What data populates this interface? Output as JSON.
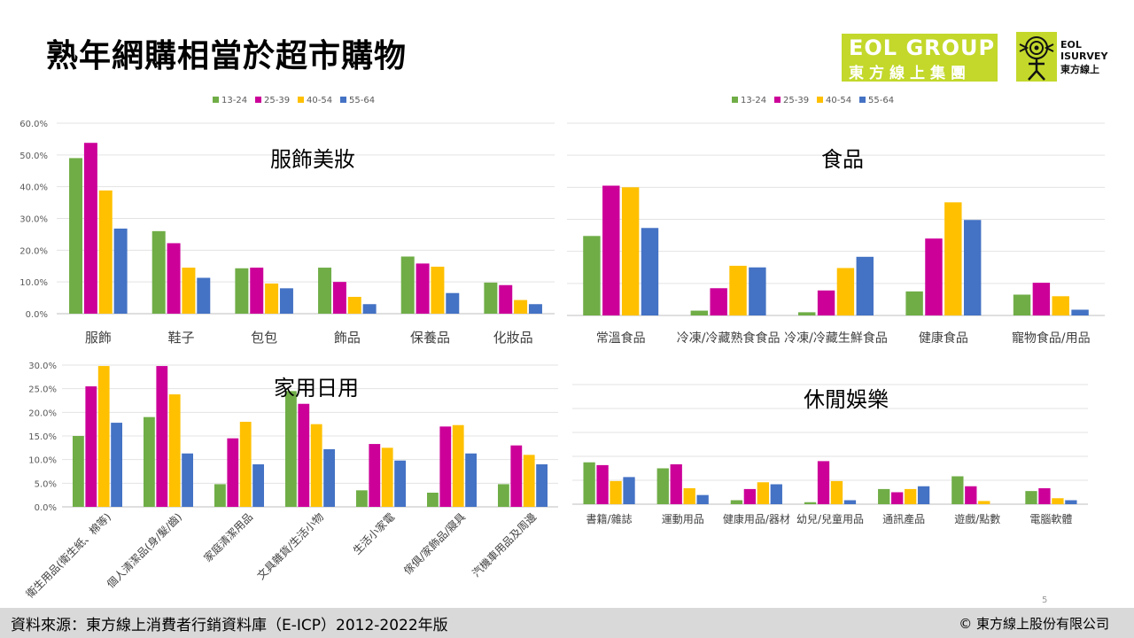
{
  "page": {
    "title": "熟年網購相當於超市購物",
    "logo_eol_line1": "EOL GROUP",
    "logo_eol_line2": "東方線上集團",
    "logo_survey_line1": "EOL",
    "logo_survey_line2": "ISURVEY",
    "logo_survey_line3": "東方線上",
    "footer_source": "資料來源：東方線上消費者行銷資料庫（E-ICP）2012-2022年版",
    "footer_copyright": "© 東方線上股份有限公司",
    "page_number": "5"
  },
  "colors": {
    "13-24": "#70ad47",
    "25-39": "#cc0099",
    "40-54": "#ffc000",
    "55-64": "#4472c4",
    "logo_green": "#c3d82b",
    "footer_bg": "#d9d9d9"
  },
  "chart_data": [
    {
      "type": "bar",
      "title": "服飾美妝",
      "categories": [
        "服飾",
        "鞋子",
        "包包",
        "飾品",
        "保養品",
        "化妝品"
      ],
      "series": [
        {
          "name": "13-24",
          "values": [
            49.0,
            26.0,
            14.3,
            14.5,
            18.0,
            9.8
          ]
        },
        {
          "name": "25-39",
          "values": [
            53.8,
            22.2,
            14.5,
            10.0,
            15.8,
            9.0
          ]
        },
        {
          "name": "40-54",
          "values": [
            38.8,
            14.5,
            9.5,
            5.3,
            14.8,
            4.3
          ]
        },
        {
          "name": "55-64",
          "values": [
            26.8,
            11.3,
            8.0,
            3.0,
            6.5,
            3.0
          ]
        }
      ],
      "ylim": [
        0,
        60
      ],
      "yticks": [
        "0.0%",
        "10.0%",
        "20.0%",
        "30.0%",
        "40.0%",
        "50.0%",
        "60.0%"
      ],
      "legend": "top-center",
      "grid": true
    },
    {
      "type": "bar",
      "title": "食品",
      "categories": [
        "常溫食品",
        "冷凍/冷藏熟食食品",
        "冷凍/冷藏生鮮食品",
        "健康食品",
        "寵物食品/用品"
      ],
      "series": [
        {
          "name": "13-24",
          "values": [
            24.8,
            1.5,
            1.0,
            7.5,
            6.5
          ]
        },
        {
          "name": "25-39",
          "values": [
            40.5,
            8.5,
            7.8,
            24.0,
            10.2
          ]
        },
        {
          "name": "40-54",
          "values": [
            40.0,
            15.5,
            14.8,
            35.3,
            6.0
          ]
        },
        {
          "name": "55-64",
          "values": [
            27.3,
            15.0,
            18.3,
            29.8,
            1.8
          ]
        }
      ],
      "ylim": [
        0,
        60
      ],
      "yticks": [],
      "legend": "top-center",
      "grid": true
    },
    {
      "type": "bar",
      "title": "家用日用",
      "categories": [
        "衛生用品(衛生紙、棉等)",
        "個人清潔品(身/髮/齒)",
        "家庭清潔用品",
        "文具雜貨/生活小物",
        "生活小家電",
        "傢俱/家飾品/寢具",
        "汽機車用品及周邊"
      ],
      "series": [
        {
          "name": "13-24",
          "values": [
            15.0,
            19.0,
            4.8,
            24.5,
            3.5,
            3.0,
            4.8
          ]
        },
        {
          "name": "25-39",
          "values": [
            25.5,
            29.8,
            14.5,
            21.8,
            13.3,
            17.0,
            13.0
          ]
        },
        {
          "name": "40-54",
          "values": [
            29.8,
            23.8,
            18.0,
            17.5,
            12.5,
            17.3,
            11.0
          ]
        },
        {
          "name": "55-64",
          "values": [
            17.8,
            11.3,
            9.0,
            12.2,
            9.8,
            11.3,
            9.0
          ]
        }
      ],
      "ylim": [
        0,
        30
      ],
      "yticks": [
        "0.0%",
        "5.0%",
        "10.0%",
        "15.0%",
        "20.0%",
        "25.0%",
        "30.0%"
      ],
      "grid": true
    },
    {
      "type": "bar",
      "title": "休閒娛樂",
      "categories": [
        "書籍/雜誌",
        "運動用品",
        "健康用品/器材",
        "幼兒/兒童用品",
        "通訊產品",
        "遊戲/點數",
        "電腦軟體"
      ],
      "series": [
        {
          "name": "13-24",
          "values": [
            10.5,
            9.0,
            1.0,
            0.5,
            3.8,
            7.0,
            3.3
          ]
        },
        {
          "name": "25-39",
          "values": [
            9.8,
            10.0,
            3.8,
            10.8,
            3.0,
            4.5,
            4.0
          ]
        },
        {
          "name": "40-54",
          "values": [
            5.8,
            4.0,
            5.5,
            5.8,
            3.8,
            0.8,
            1.5
          ]
        },
        {
          "name": "55-64",
          "values": [
            6.8,
            2.3,
            5.0,
            1.0,
            4.5,
            0.0,
            1.0
          ]
        }
      ],
      "ylim": [
        0,
        30
      ],
      "yticks": [],
      "grid": true
    }
  ]
}
